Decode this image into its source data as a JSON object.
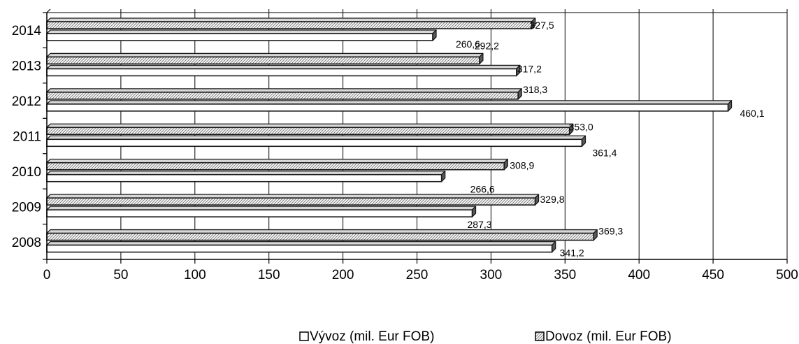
{
  "chart_data": {
    "type": "bar",
    "orientation": "horizontal",
    "bar_style": "3d",
    "categories": [
      "2008",
      "2009",
      "2010",
      "2011",
      "2012",
      "2013",
      "2014"
    ],
    "series": [
      {
        "name": "Vývoz (mil. Eur FOB)",
        "values": [
          341.2,
          287.3,
          266.6,
          361.4,
          460.1,
          317.2,
          260.6
        ],
        "labels": [
          "341,2",
          "287,3",
          "266,6",
          "361,4",
          "460,1",
          "317,2",
          "260,6"
        ],
        "fill": "#ffffff",
        "pattern": "none"
      },
      {
        "name": "Dovoz (mil. Eur FOB)",
        "values": [
          369.3,
          329.8,
          308.9,
          353.0,
          318.3,
          292.2,
          327.5
        ],
        "labels": [
          "369,3",
          "329,8",
          "308,9",
          "353,0",
          "318,3",
          "292,2",
          "327,5"
        ],
        "fill": "#ffffff",
        "pattern": "diagonal-hatch"
      }
    ],
    "x_ticks": [
      "0",
      "50",
      "100",
      "150",
      "200",
      "250",
      "300",
      "350",
      "400",
      "450",
      "500"
    ],
    "xlim": [
      0,
      500
    ],
    "xlabel": "",
    "ylabel": "",
    "title": "",
    "grid": "vertical-major",
    "legend_position": "bottom",
    "colors": {
      "bar_outline": "#1a1a1a",
      "bar_side": "#5a5a5a",
      "hatch": "#7a7a7a",
      "grid": "#000000",
      "text": "#000000"
    }
  }
}
